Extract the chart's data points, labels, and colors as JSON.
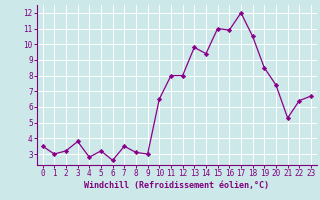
{
  "x": [
    0,
    1,
    2,
    3,
    4,
    5,
    6,
    7,
    8,
    9,
    10,
    11,
    12,
    13,
    14,
    15,
    16,
    17,
    18,
    19,
    20,
    21,
    22,
    23
  ],
  "y": [
    3.5,
    3.0,
    3.2,
    3.8,
    2.8,
    3.2,
    2.6,
    3.5,
    3.1,
    3.0,
    6.5,
    8.0,
    8.0,
    9.8,
    9.4,
    11.0,
    10.9,
    12.0,
    10.5,
    8.5,
    7.4,
    5.3,
    6.4,
    6.7
  ],
  "line_color": "#8b008b",
  "marker": "D",
  "marker_size": 2.2,
  "linewidth": 0.9,
  "xlim": [
    -0.5,
    23.5
  ],
  "ylim": [
    2.3,
    12.5
  ],
  "yticks": [
    3,
    4,
    5,
    6,
    7,
    8,
    9,
    10,
    11,
    12
  ],
  "xticks": [
    0,
    1,
    2,
    3,
    4,
    5,
    6,
    7,
    8,
    9,
    10,
    11,
    12,
    13,
    14,
    15,
    16,
    17,
    18,
    19,
    20,
    21,
    22,
    23
  ],
  "xlabel": "Windchill (Refroidissement éolien,°C)",
  "xlabel_fontsize": 6.0,
  "tick_fontsize": 5.5,
  "background_color": "#cce8e8",
  "grid_color": "#ffffff",
  "axis_color": "#800080",
  "spine_color": "#800080"
}
